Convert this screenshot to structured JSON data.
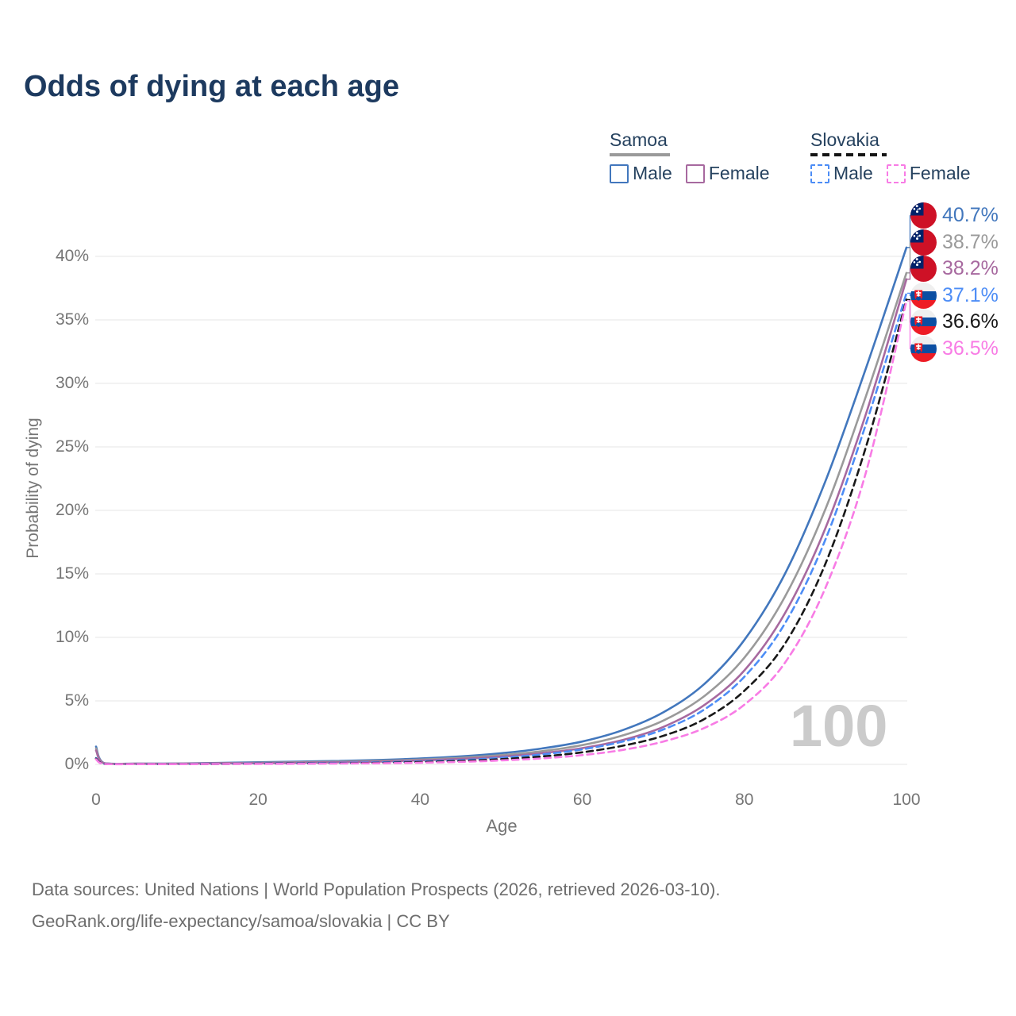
{
  "title": "Odds of dying at each age",
  "legend": {
    "samoa": {
      "title": "Samoa",
      "male_label": "Male",
      "female_label": "Female"
    },
    "slovakia": {
      "title": "Slovakia",
      "male_label": "Male",
      "female_label": "Female"
    }
  },
  "chart_data": {
    "type": "line",
    "title": "Odds of dying at each age",
    "xlabel": "Age",
    "ylabel": "Probability of dying",
    "xlim": [
      0,
      100
    ],
    "ylim": [
      0,
      43
    ],
    "grid": true,
    "legend_position": "top-right",
    "watermark": "100",
    "x_ticks": [
      0,
      20,
      40,
      60,
      80,
      100
    ],
    "y_ticks": [
      0,
      5,
      10,
      15,
      20,
      25,
      30,
      35,
      40
    ],
    "y_tick_suffix": "%",
    "x": [
      0,
      1,
      5,
      10,
      15,
      20,
      25,
      30,
      35,
      40,
      45,
      50,
      55,
      60,
      65,
      70,
      75,
      80,
      85,
      90,
      95,
      100
    ],
    "series": [
      {
        "id": "samoa-male",
        "name": "Samoa Male",
        "color": "#4277bd",
        "dash": "solid",
        "flag": "samoa",
        "end_label": "40.7%",
        "values": [
          1.4,
          0.1,
          0.06,
          0.07,
          0.11,
          0.17,
          0.22,
          0.27,
          0.35,
          0.46,
          0.63,
          0.88,
          1.25,
          1.8,
          2.7,
          4.1,
          6.3,
          9.8,
          15.0,
          22.3,
          31.2,
          40.7
        ]
      },
      {
        "id": "samoa-both",
        "name": "Samoa Both sexes",
        "color": "#9a9a9a",
        "dash": "solid",
        "flag": "samoa",
        "end_label": "38.7%",
        "values": [
          1.25,
          0.09,
          0.05,
          0.06,
          0.09,
          0.13,
          0.17,
          0.22,
          0.28,
          0.38,
          0.52,
          0.73,
          1.04,
          1.52,
          2.28,
          3.45,
          5.35,
          8.4,
          13.2,
          20.1,
          29.0,
          38.7
        ]
      },
      {
        "id": "samoa-female",
        "name": "Samoa Female",
        "color": "#a7699f",
        "dash": "solid",
        "flag": "samoa",
        "end_label": "38.2%",
        "values": [
          1.1,
          0.08,
          0.05,
          0.05,
          0.08,
          0.1,
          0.13,
          0.17,
          0.22,
          0.31,
          0.43,
          0.61,
          0.88,
          1.28,
          1.92,
          2.95,
          4.65,
          7.4,
          11.9,
          18.6,
          27.6,
          38.2
        ]
      },
      {
        "id": "slovakia-male",
        "name": "Slovakia Male",
        "color": "#4d8df6",
        "dash": "dashed",
        "flag": "slovakia",
        "end_label": "37.1%",
        "values": [
          0.5,
          0.04,
          0.02,
          0.02,
          0.04,
          0.07,
          0.09,
          0.12,
          0.16,
          0.23,
          0.34,
          0.52,
          0.78,
          1.18,
          1.8,
          2.75,
          4.3,
          6.9,
          11.1,
          17.7,
          26.8,
          37.1
        ]
      },
      {
        "id": "slovakia-both",
        "name": "Slovakia Both sexes",
        "color": "#191919",
        "dash": "dashed",
        "flag": "slovakia",
        "end_label": "36.6%",
        "values": [
          0.45,
          0.04,
          0.02,
          0.02,
          0.03,
          0.05,
          0.07,
          0.09,
          0.12,
          0.18,
          0.27,
          0.41,
          0.62,
          0.95,
          1.47,
          2.25,
          3.55,
          5.8,
          9.5,
          15.8,
          25.0,
          36.6
        ]
      },
      {
        "id": "slovakia-female",
        "name": "Slovakia Female",
        "color": "#f87ce5",
        "dash": "dashed",
        "flag": "slovakia",
        "end_label": "36.5%",
        "values": [
          0.4,
          0.03,
          0.02,
          0.02,
          0.03,
          0.04,
          0.05,
          0.07,
          0.09,
          0.13,
          0.2,
          0.31,
          0.47,
          0.73,
          1.14,
          1.8,
          2.85,
          4.7,
          8.0,
          13.9,
          23.0,
          36.5
        ]
      }
    ]
  },
  "footer": {
    "line1": "Data sources: United Nations | World Population Prospects (2026, retrieved 2026-03-10).",
    "line2": "GeoRank.org/life-expectancy/samoa/slovakia | CC BY"
  }
}
